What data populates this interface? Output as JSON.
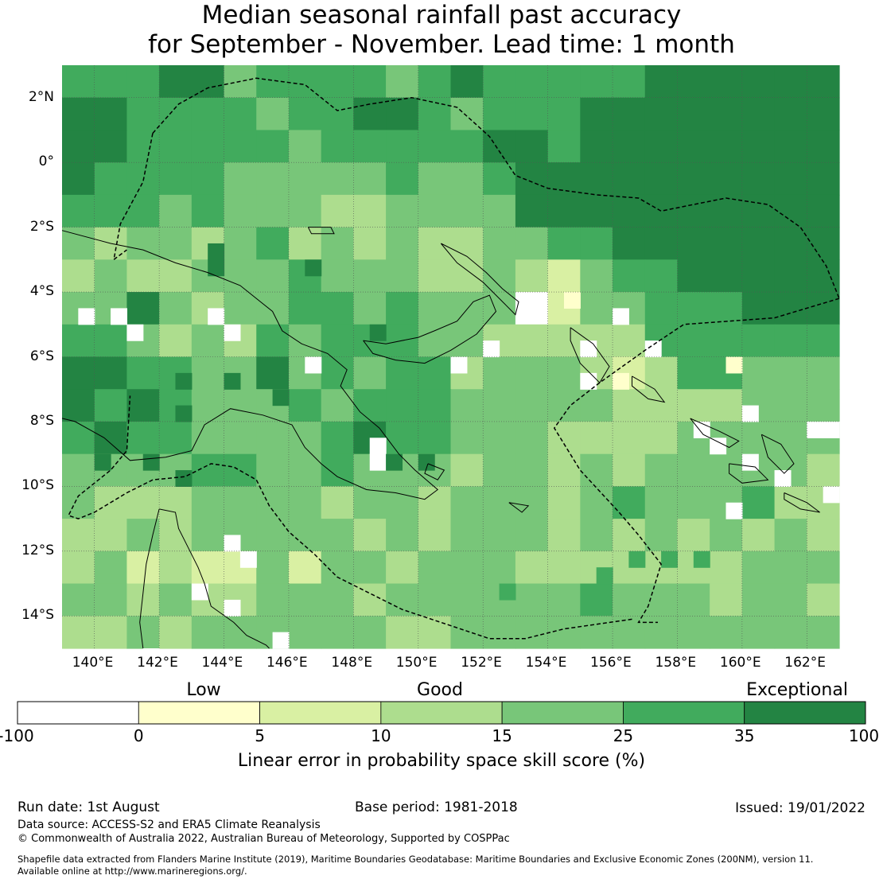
{
  "title": {
    "line1": "Median seasonal rainfall past accuracy",
    "line2": "for September - November. Lead time: 1 month"
  },
  "map": {
    "lon_range": [
      139,
      163
    ],
    "lat_range": [
      -15,
      3
    ],
    "lon_ticks": [
      "140°E",
      "142°E",
      "144°E",
      "146°E",
      "148°E",
      "150°E",
      "152°E",
      "154°E",
      "156°E",
      "158°E",
      "160°E",
      "162°E"
    ],
    "lat_ticks": [
      "2°N",
      "0°",
      "2°S",
      "4°S",
      "6°S",
      "8°S",
      "10°S",
      "12°S",
      "14°S"
    ],
    "grid_color": "#555555",
    "coast_color": "#000000",
    "eez_style": "dashed"
  },
  "legend": {
    "categories": [
      {
        "label": "Low"
      },
      {
        "label": "Good"
      },
      {
        "label": "Exceptional"
      }
    ],
    "bins": [
      {
        "from": "-100",
        "to": "0",
        "color": "#ffffff"
      },
      {
        "from": "0",
        "to": "5",
        "color": "#ffffcc"
      },
      {
        "from": "5",
        "to": "10",
        "color": "#d9f0a3"
      },
      {
        "from": "10",
        "to": "15",
        "color": "#addd8e"
      },
      {
        "from": "15",
        "to": "25",
        "color": "#78c679"
      },
      {
        "from": "25",
        "to": "35",
        "color": "#41ab5d"
      },
      {
        "from": "35",
        "to": "100",
        "color": "#238443"
      }
    ],
    "ticks": [
      "-100",
      "0",
      "5",
      "10",
      "15",
      "25",
      "35",
      "100"
    ],
    "axis_label": "Linear error in probability space skill score (%)"
  },
  "footer": {
    "run_date": "Run date: 1st August",
    "base_period": "Base period: 1981-2018",
    "issued": "Issued: 19/01/2022",
    "data_source": "Data source: ACCESS-S2 and ERA5 Climate Reanalysis",
    "copyright": "© Commonwealth of Australia 2022, Australian Bureau of Meteorology, Supported by COSPPac",
    "shapefile_line1": "Shapefile data extracted from Flanders Marine Institute (2019), Maritime Boundaries Geodatabase: Maritime Boundaries and Exclusive Economic Zones (200NM), version 11.",
    "shapefile_line2": "Available online at http://www.marineregions.org/."
  }
}
